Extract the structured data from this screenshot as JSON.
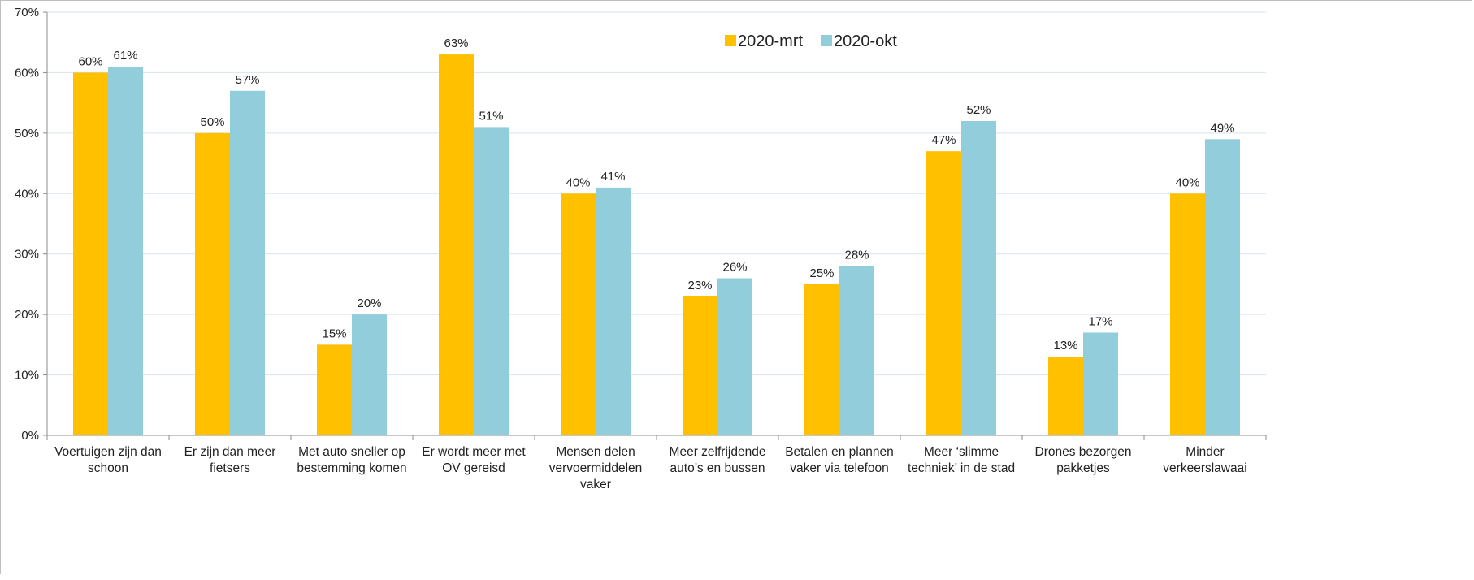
{
  "chart_data": {
    "type": "bar",
    "title": "",
    "xlabel": "",
    "ylabel": "",
    "ylim": [
      0,
      70
    ],
    "yticks": [
      0,
      10,
      20,
      30,
      40,
      50,
      60,
      70
    ],
    "ytick_labels": [
      "0%",
      "10%",
      "20%",
      "30%",
      "40%",
      "50%",
      "60%",
      "70%"
    ],
    "grid": "horizontal",
    "legend_position": "top-right",
    "categories": [
      [
        "Voertuigen zijn dan",
        "schoon"
      ],
      [
        "Er zijn dan meer",
        "fietsers"
      ],
      [
        "Met auto sneller op",
        "bestemming komen"
      ],
      [
        "Er wordt meer met",
        "OV gereisd"
      ],
      [
        "Mensen delen",
        "vervoermiddelen",
        "vaker"
      ],
      [
        "Meer zelfrijdende",
        "auto’s en bussen"
      ],
      [
        "Betalen en plannen",
        "vaker via telefoon"
      ],
      [
        "Meer ‘slimme",
        "techniek’ in de stad"
      ],
      [
        "Drones bezorgen",
        "pakketjes"
      ],
      [
        "Minder",
        "verkeerslawaai"
      ]
    ],
    "series": [
      {
        "name": "2020-mrt",
        "color": "#ffc000",
        "values": [
          60,
          50,
          15,
          63,
          40,
          23,
          25,
          47,
          13,
          40
        ],
        "labels": [
          "60%",
          "50%",
          "15%",
          "63%",
          "40%",
          "23%",
          "25%",
          "47%",
          "13%",
          "40%"
        ]
      },
      {
        "name": "2020-okt",
        "color": "#92cddc",
        "values": [
          61,
          57,
          20,
          51,
          41,
          26,
          28,
          52,
          17,
          49
        ],
        "labels": [
          "61%",
          "57%",
          "20%",
          "51%",
          "41%",
          "26%",
          "28%",
          "52%",
          "17%",
          "49%"
        ]
      }
    ],
    "colors": {
      "grid": "#d9e3ee",
      "axis": "#8c8c8c"
    }
  }
}
